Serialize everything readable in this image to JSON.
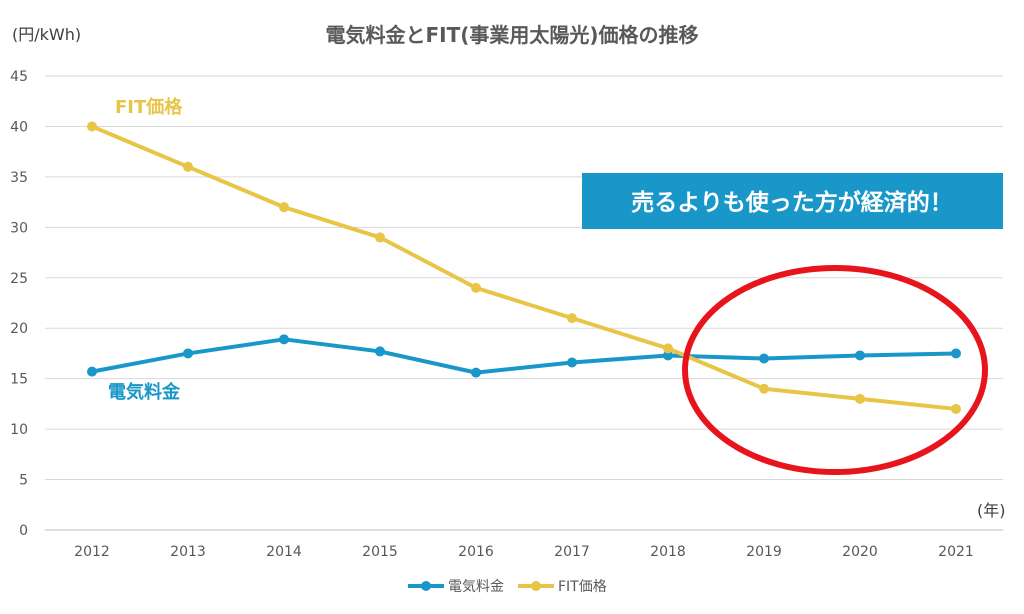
{
  "chart_data": {
    "type": "line",
    "title": "電気料金とFIT(事業用太陽光)価格の推移",
    "y_unit_label": "(円/kWh)",
    "x_unit_label": "(年)",
    "categories": [
      "2012",
      "2013",
      "2014",
      "2015",
      "2016",
      "2017",
      "2018",
      "2019",
      "2020",
      "2021"
    ],
    "ylim": [
      0,
      45
    ],
    "yticks": [
      0,
      5,
      10,
      15,
      20,
      25,
      30,
      35,
      40,
      45
    ],
    "grid": true,
    "legend_position": "bottom",
    "series": [
      {
        "name": "電気料金",
        "color": "#1a97c9",
        "values": [
          15.7,
          17.5,
          18.9,
          17.7,
          15.6,
          16.6,
          17.3,
          17.0,
          17.3,
          17.5
        ]
      },
      {
        "name": "FIT価格",
        "color": "#e8c547",
        "values": [
          40,
          36,
          32,
          29,
          24,
          21,
          18,
          14,
          13,
          12
        ]
      }
    ],
    "annotations": {
      "callout_text": "売るよりも使った方が経済的！",
      "callout_bg": "#1a97c9",
      "circle_color": "#e8141c"
    }
  }
}
